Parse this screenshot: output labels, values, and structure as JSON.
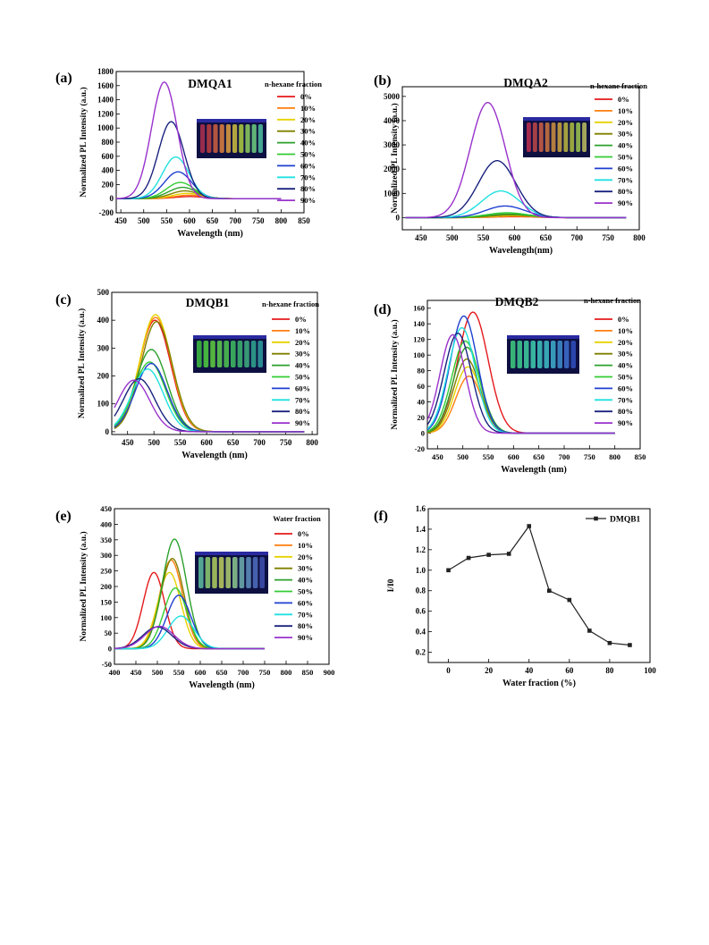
{
  "figure": {
    "panel_labels": [
      "(a)",
      "(b)",
      "(c)",
      "(d)",
      "(e)",
      "(f)"
    ]
  },
  "chart_data": [
    {
      "panel": "(a)",
      "type": "line",
      "title": "DMQA1",
      "xlabel": "Wavelength (nm)",
      "ylabel": "Normalized PL Intensity (a.u.)",
      "xlim": [
        440,
        850
      ],
      "ylim": [
        -200,
        1800
      ],
      "xticks": [
        450,
        500,
        550,
        600,
        650,
        700,
        750,
        800,
        850
      ],
      "yticks": [
        -200,
        0,
        200,
        400,
        600,
        800,
        1000,
        1200,
        1400,
        1600,
        1800
      ],
      "x_range": [
        440,
        800
      ],
      "legend_title": "n-hexane fraction",
      "legend_position": "right",
      "has_inset_photo": true,
      "inset_colors": [
        "#b03050",
        "#c04040",
        "#d06040",
        "#e08040",
        "#e0a040",
        "#d0c040",
        "#b0d040",
        "#90d060",
        "#70d080",
        "#50c0a0"
      ],
      "series": [
        {
          "name": "0%",
          "color": "#e41a1c",
          "peak_x": 600,
          "peak_y": 30,
          "width": 32
        },
        {
          "name": "10%",
          "color": "#ff7f0e",
          "peak_x": 600,
          "peak_y": 50,
          "width": 32
        },
        {
          "name": "20%",
          "color": "#e6d200",
          "peak_x": 595,
          "peak_y": 75,
          "width": 32
        },
        {
          "name": "30%",
          "color": "#808000",
          "peak_x": 590,
          "peak_y": 110,
          "width": 31
        },
        {
          "name": "40%",
          "color": "#2ca02c",
          "peak_x": 585,
          "peak_y": 160,
          "width": 31
        },
        {
          "name": "50%",
          "color": "#33cc33",
          "peak_x": 580,
          "peak_y": 230,
          "width": 30
        },
        {
          "name": "60%",
          "color": "#1f3fd0",
          "peak_x": 575,
          "peak_y": 380,
          "width": 30
        },
        {
          "name": "70%",
          "color": "#20e0e0",
          "peak_x": 570,
          "peak_y": 590,
          "width": 29
        },
        {
          "name": "80%",
          "color": "#1a237e",
          "peak_x": 560,
          "peak_y": 1090,
          "width": 28
        },
        {
          "name": "90%",
          "color": "#9932cc",
          "peak_x": 545,
          "peak_y": 1650,
          "width": 28
        }
      ]
    },
    {
      "panel": "(b)",
      "type": "line",
      "title": "DMQA2",
      "xlabel": "Wavelength(nm)",
      "ylabel": "Normalized PL Intensity (a.u.)",
      "xlim": [
        420,
        800
      ],
      "ylim": [
        -500,
        5400
      ],
      "xticks": [
        450,
        500,
        550,
        600,
        650,
        700,
        750,
        800
      ],
      "yticks": [
        0,
        1000,
        2000,
        3000,
        4000,
        5000
      ],
      "x_range": [
        425,
        780
      ],
      "legend_title": "n-hexane fraction",
      "legend_position": "right",
      "has_inset_photo": true,
      "inset_colors": [
        "#c03050",
        "#c04848",
        "#d06048",
        "#d07840",
        "#d09040",
        "#d0a840",
        "#c0b840",
        "#b0c040",
        "#a0c850",
        "#c0c060"
      ],
      "series": [
        {
          "name": "0%",
          "color": "#e41a1c",
          "peak_x": 600,
          "peak_y": 40,
          "width": 34
        },
        {
          "name": "10%",
          "color": "#ff7f0e",
          "peak_x": 600,
          "peak_y": 60,
          "width": 34
        },
        {
          "name": "20%",
          "color": "#e6d200",
          "peak_x": 598,
          "peak_y": 80,
          "width": 34
        },
        {
          "name": "30%",
          "color": "#808000",
          "peak_x": 595,
          "peak_y": 110,
          "width": 33
        },
        {
          "name": "40%",
          "color": "#2ca02c",
          "peak_x": 590,
          "peak_y": 150,
          "width": 33
        },
        {
          "name": "50%",
          "color": "#33cc33",
          "peak_x": 588,
          "peak_y": 200,
          "width": 33
        },
        {
          "name": "60%",
          "color": "#1f3fd0",
          "peak_x": 585,
          "peak_y": 480,
          "width": 32
        },
        {
          "name": "70%",
          "color": "#20e0e0",
          "peak_x": 578,
          "peak_y": 1100,
          "width": 31
        },
        {
          "name": "80%",
          "color": "#1a237e",
          "peak_x": 572,
          "peak_y": 2350,
          "width": 30
        },
        {
          "name": "90%",
          "color": "#9932cc",
          "peak_x": 557,
          "peak_y": 4750,
          "width": 28
        }
      ]
    },
    {
      "panel": "(c)",
      "type": "line",
      "title": "DMQB1",
      "xlabel": "Wavelength (nm)",
      "ylabel": "Normalized PL Intensity (a.u.)",
      "xlim": [
        420,
        810
      ],
      "ylim": [
        -10,
        500
      ],
      "xticks": [
        450,
        500,
        550,
        600,
        650,
        700,
        750,
        800
      ],
      "yticks": [
        0,
        100,
        200,
        300,
        400,
        500
      ],
      "x_range": [
        425,
        785
      ],
      "legend_title": "n-hexane fraction",
      "legend_position": "right",
      "has_inset_photo": true,
      "inset_colors": [
        "#40c040",
        "#50d040",
        "#60d040",
        "#60d050",
        "#50c850",
        "#40c060",
        "#40b870",
        "#40b080",
        "#30a890",
        "#30a0a0"
      ],
      "series": [
        {
          "name": "0%",
          "color": "#e41a1c",
          "peak_x": 502,
          "peak_y": 400,
          "width": 30
        },
        {
          "name": "10%",
          "color": "#ff7f0e",
          "peak_x": 503,
          "peak_y": 410,
          "width": 30
        },
        {
          "name": "20%",
          "color": "#e6d200",
          "peak_x": 503,
          "peak_y": 420,
          "width": 30
        },
        {
          "name": "30%",
          "color": "#808000",
          "peak_x": 505,
          "peak_y": 395,
          "width": 30
        },
        {
          "name": "40%",
          "color": "#2ca02c",
          "peak_x": 495,
          "peak_y": 295,
          "width": 30
        },
        {
          "name": "50%",
          "color": "#33cc33",
          "peak_x": 492,
          "peak_y": 250,
          "width": 30
        },
        {
          "name": "60%",
          "color": "#1f3fd0",
          "peak_x": 495,
          "peak_y": 245,
          "width": 30
        },
        {
          "name": "70%",
          "color": "#20e0e0",
          "peak_x": 488,
          "peak_y": 225,
          "width": 30
        },
        {
          "name": "80%",
          "color": "#1a237e",
          "peak_x": 472,
          "peak_y": 190,
          "width": 30
        },
        {
          "name": "90%",
          "color": "#9932cc",
          "peak_x": 462,
          "peak_y": 185,
          "width": 30
        }
      ]
    },
    {
      "panel": "(d)",
      "type": "line",
      "title": "DMQB2",
      "xlabel": "Wavelength (nm)",
      "ylabel": "Normalized PL Intensity (a.u.)",
      "xlim": [
        430,
        850
      ],
      "ylim": [
        -20,
        170
      ],
      "xticks": [
        450,
        500,
        550,
        600,
        650,
        700,
        750,
        800,
        850
      ],
      "yticks": [
        -20,
        0,
        20,
        40,
        60,
        80,
        100,
        120,
        140,
        160
      ],
      "x_range": [
        430,
        800
      ],
      "legend_title": "n-hexane fraction",
      "legend_position": "right",
      "has_inset_photo": true,
      "inset_colors": [
        "#40d080",
        "#40d090",
        "#40d0a0",
        "#40d0b0",
        "#40c8c0",
        "#40c0c8",
        "#40b0d0",
        "#4090d0",
        "#4070d0",
        "#3050c0"
      ],
      "series": [
        {
          "name": "0%",
          "color": "#e41a1c",
          "peak_x": 520,
          "peak_y": 155,
          "width": 30
        },
        {
          "name": "10%",
          "color": "#ff7f0e",
          "peak_x": 512,
          "peak_y": 73,
          "width": 26
        },
        {
          "name": "20%",
          "color": "#e6d200",
          "peak_x": 510,
          "peak_y": 85,
          "width": 26
        },
        {
          "name": "30%",
          "color": "#808000",
          "peak_x": 508,
          "peak_y": 95,
          "width": 26
        },
        {
          "name": "40%",
          "color": "#2ca02c",
          "peak_x": 508,
          "peak_y": 110,
          "width": 27
        },
        {
          "name": "50%",
          "color": "#33cc33",
          "peak_x": 505,
          "peak_y": 118,
          "width": 27
        },
        {
          "name": "60%",
          "color": "#1f3fd0",
          "peak_x": 502,
          "peak_y": 150,
          "width": 27
        },
        {
          "name": "70%",
          "color": "#20e0e0",
          "peak_x": 498,
          "peak_y": 135,
          "width": 27
        },
        {
          "name": "80%",
          "color": "#1a237e",
          "peak_x": 490,
          "peak_y": 128,
          "width": 27
        },
        {
          "name": "90%",
          "color": "#9932cc",
          "peak_x": 480,
          "peak_y": 126,
          "width": 25
        }
      ]
    },
    {
      "panel": "(e)",
      "type": "line",
      "xlabel": "Wavelength (nm)",
      "ylabel": "Normalized PL Intensity (a.u.)",
      "xlim": [
        400,
        900
      ],
      "ylim": [
        -50,
        450
      ],
      "xticks": [
        400,
        450,
        500,
        550,
        600,
        650,
        700,
        750,
        800,
        850,
        900
      ],
      "yticks": [
        -50,
        0,
        50,
        100,
        150,
        200,
        250,
        300,
        350,
        400,
        450
      ],
      "x_range": [
        400,
        750
      ],
      "legend_title": "Water fraction",
      "legend_position": "right",
      "has_inset_photo": true,
      "inset_colors": [
        "#60c0a0",
        "#90d070",
        "#b0d060",
        "#c0d060",
        "#b0d070",
        "#90c890",
        "#70b0b0",
        "#6090c0",
        "#5070c0",
        "#4050b0"
      ],
      "series": [
        {
          "name": "0%",
          "color": "#e41a1c",
          "peak_x": 492,
          "peak_y": 245,
          "width": 25
        },
        {
          "name": "10%",
          "color": "#ff7f0e",
          "peak_x": 532,
          "peak_y": 285,
          "width": 27
        },
        {
          "name": "20%",
          "color": "#e6d200",
          "peak_x": 528,
          "peak_y": 245,
          "width": 27
        },
        {
          "name": "30%",
          "color": "#808000",
          "peak_x": 535,
          "peak_y": 290,
          "width": 27
        },
        {
          "name": "40%",
          "color": "#2ca02c",
          "peak_x": 540,
          "peak_y": 352,
          "width": 28
        },
        {
          "name": "50%",
          "color": "#33cc33",
          "peak_x": 542,
          "peak_y": 195,
          "width": 27
        },
        {
          "name": "60%",
          "color": "#1f3fd0",
          "peak_x": 550,
          "peak_y": 172,
          "width": 28
        },
        {
          "name": "70%",
          "color": "#20e0e0",
          "peak_x": 555,
          "peak_y": 105,
          "width": 30
        },
        {
          "name": "80%",
          "color": "#1a237e",
          "peak_x": 500,
          "peak_y": 70,
          "width": 34
        },
        {
          "name": "90%",
          "color": "#9932cc",
          "peak_x": 505,
          "peak_y": 72,
          "width": 34
        }
      ]
    },
    {
      "panel": "(f)",
      "type": "line",
      "xlabel": "Water  fraction (%)",
      "ylabel": "I/I0",
      "xlim": [
        -10,
        100
      ],
      "ylim": [
        0.1,
        1.6
      ],
      "xticks": [
        0,
        20,
        40,
        60,
        80,
        100
      ],
      "yticks": [
        0.2,
        0.4,
        0.6,
        0.8,
        1.0,
        1.2,
        1.4,
        1.6
      ],
      "legend_position": "top-right",
      "grid": false,
      "series": [
        {
          "name": "DMQB1",
          "color": "#222222",
          "x": [
            0,
            10,
            20,
            30,
            40,
            50,
            60,
            70,
            80,
            90
          ],
          "y": [
            1.0,
            1.12,
            1.15,
            1.16,
            1.43,
            0.8,
            0.71,
            0.41,
            0.29,
            0.27
          ]
        }
      ]
    }
  ]
}
